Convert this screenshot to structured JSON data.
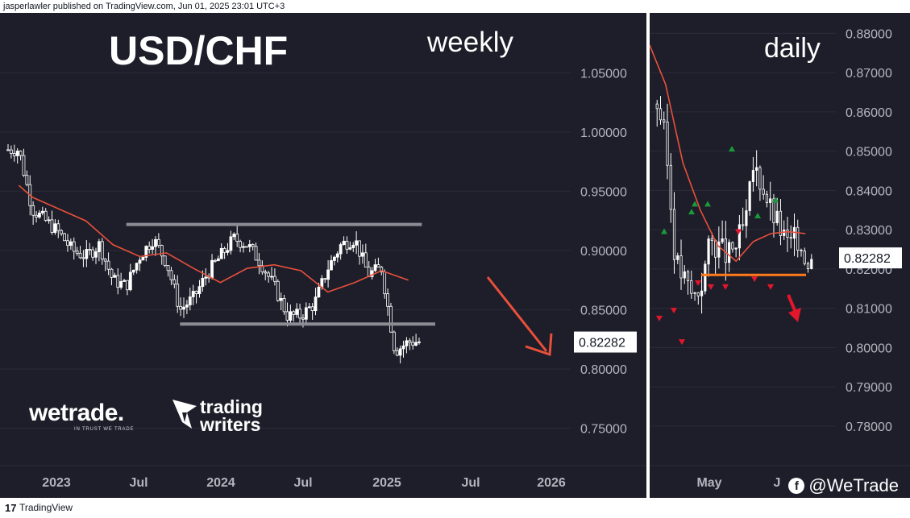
{
  "header": {
    "text": "jasperlawler published on TradingView.com, Jun 01, 2025 23:01 UTC+3"
  },
  "footer": {
    "logo": "17",
    "brand": "TradingView"
  },
  "social": {
    "icon": "facebook-icon",
    "handle": "@WeTrade"
  },
  "watermarks": {
    "wetrade": "wetrade.",
    "wetrade_tagline": "IN TRUST WE TRADE",
    "trading_writers_line1": "trading",
    "trading_writers_line2": "writers"
  },
  "colors": {
    "background": "#1e1e2a",
    "candle": "#ffffff",
    "ma": "#e8503a",
    "levels": "#8c8c94",
    "support": "#ff7a1a",
    "arrow": "#e8503a",
    "up_marker": "#1a9a3a",
    "down_marker": "#e3162c"
  },
  "chart_data": [
    {
      "type": "line",
      "chart_type": "candlestick",
      "title": "USD/CHF",
      "subtitle": "weekly",
      "x_ticks": [
        "2023",
        "Jul",
        "2024",
        "Jul",
        "2025",
        "Jul",
        "2026"
      ],
      "y_ticks": [
        "1.05000",
        "1.00000",
        "0.95000",
        "0.90000",
        "0.85000",
        "0.80000",
        "0.75000"
      ],
      "ylim": [
        0.725,
        1.085
      ],
      "last_price": "0.82282",
      "grid": true,
      "series": [
        {
          "name": "",
          "role": "close",
          "x": [
            "2022-12",
            "2023-01",
            "2023-02",
            "2023-03",
            "2023-04",
            "2023-05",
            "2023-06",
            "2023-07",
            "2023-08",
            "2023-09",
            "2023-10",
            "2023-11",
            "2023-12",
            "2024-01",
            "2024-02",
            "2024-03",
            "2024-04",
            "2024-05",
            "2024-06",
            "2024-07",
            "2024-08",
            "2024-09",
            "2024-10",
            "2024-11",
            "2024-12",
            "2025-01",
            "2025-02",
            "2025-03",
            "2025-04",
            "2025-05"
          ],
          "values": [
            0.985,
            0.935,
            0.925,
            0.915,
            0.9,
            0.895,
            0.905,
            0.875,
            0.87,
            0.895,
            0.91,
            0.89,
            0.85,
            0.86,
            0.88,
            0.895,
            0.91,
            0.905,
            0.89,
            0.87,
            0.845,
            0.845,
            0.855,
            0.885,
            0.905,
            0.91,
            0.88,
            0.885,
            0.815,
            0.823
          ]
        },
        {
          "name": "",
          "role": "moving-average",
          "x": [
            "2022-12",
            "2023-01",
            "2023-03",
            "2023-05",
            "2023-07",
            "2023-09",
            "2023-11",
            "2024-01",
            "2024-03",
            "2024-05",
            "2024-07",
            "2024-09",
            "2024-11",
            "2025-01",
            "2025-03",
            "2025-05"
          ],
          "values": [
            0.955,
            0.945,
            0.935,
            0.925,
            0.905,
            0.895,
            0.898,
            0.885,
            0.873,
            0.885,
            0.888,
            0.883,
            0.865,
            0.873,
            0.883,
            0.875
          ]
        }
      ],
      "horizontal_levels": [
        {
          "value": 0.922,
          "from": "2023-08",
          "to": "2025-06"
        },
        {
          "value": 0.838,
          "from": "2023-12",
          "to": "2025-07"
        }
      ],
      "annotation": "arrow pointing down after May 2025"
    },
    {
      "type": "line",
      "chart_type": "candlestick",
      "subtitle": "daily",
      "x_ticks": [
        "May",
        "J"
      ],
      "y_ticks": [
        "0.88000",
        "0.87000",
        "0.86000",
        "0.85000",
        "0.84000",
        "0.83000",
        "0.82000",
        "0.81000",
        "0.80000",
        "0.79000",
        "0.78000"
      ],
      "ylim": [
        0.772,
        0.882
      ],
      "last_price": "0.82282",
      "grid": true,
      "series": [
        {
          "name": "",
          "role": "close",
          "x": [
            "2025-04-01",
            "2025-04-04",
            "2025-04-08",
            "2025-04-11",
            "2025-04-15",
            "2025-04-18",
            "2025-04-22",
            "2025-04-25",
            "2025-04-29",
            "2025-05-02",
            "2025-05-06",
            "2025-05-09",
            "2025-05-13",
            "2025-05-16",
            "2025-05-20",
            "2025-05-23",
            "2025-05-27",
            "2025-05-30"
          ],
          "values": [
            0.862,
            0.852,
            0.822,
            0.818,
            0.813,
            0.815,
            0.827,
            0.826,
            0.823,
            0.826,
            0.832,
            0.846,
            0.841,
            0.835,
            0.83,
            0.826,
            0.828,
            0.823
          ]
        },
        {
          "name": "",
          "role": "moving-average",
          "x": [
            "2025-03-28",
            "2025-04-04",
            "2025-04-11",
            "2025-04-18",
            "2025-04-25",
            "2025-05-02",
            "2025-05-09",
            "2025-05-16",
            "2025-05-23",
            "2025-05-30"
          ],
          "values": [
            0.877,
            0.867,
            0.847,
            0.835,
            0.826,
            0.822,
            0.827,
            0.829,
            0.8295,
            0.829
          ]
        }
      ],
      "markers_up": [
        0.8295,
        0.8345,
        0.8365,
        0.8365,
        0.8505,
        0.8335,
        0.8375
      ],
      "markers_down": [
        0.8075,
        0.8095,
        0.8015,
        0.8165,
        0.8155,
        0.8155,
        0.8295,
        0.8175,
        0.8155
      ],
      "support_level": 0.8185,
      "annotation": "arrow pointing down"
    }
  ]
}
